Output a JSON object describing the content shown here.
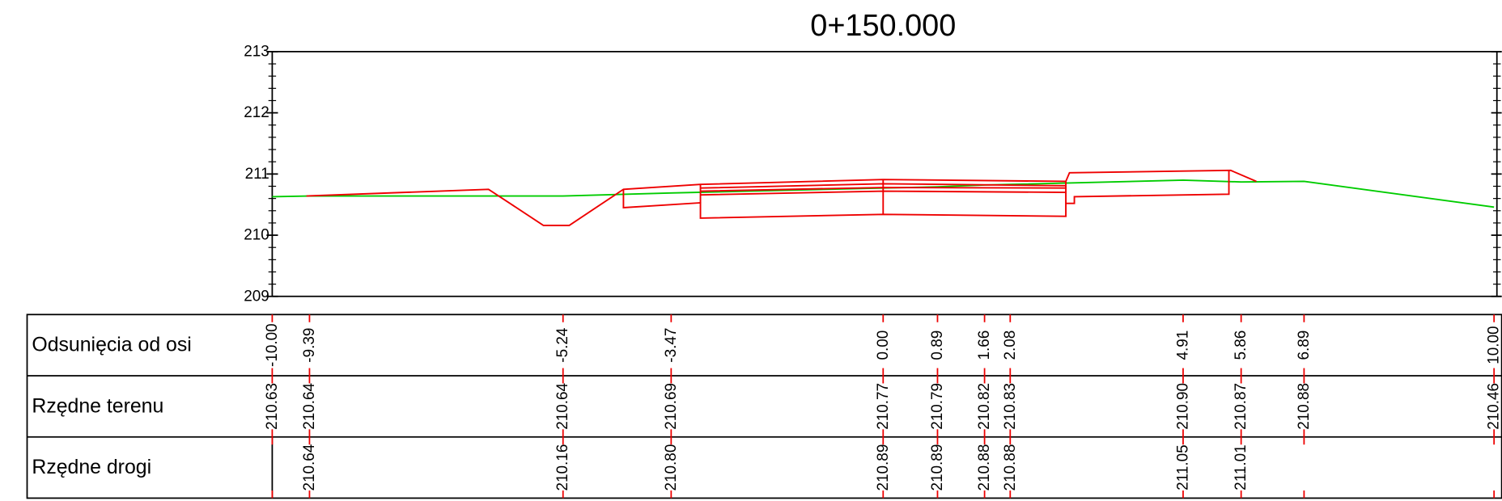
{
  "chart_data": {
    "type": "line",
    "title": "0+150.000",
    "xlim": [
      -10,
      10
    ],
    "ylim": [
      209,
      213
    ],
    "yticks": [
      209,
      210,
      211,
      212,
      213
    ],
    "series": [
      {
        "color": "#00cc00",
        "x": [
          -10,
          -9.39,
          -5.24,
          -3.47,
          0,
          0.89,
          1.66,
          2.08,
          4.91,
          5.86,
          6.89,
          10
        ],
        "values": [
          210.63,
          210.64,
          210.64,
          210.69,
          210.77,
          210.79,
          210.82,
          210.83,
          210.9,
          210.87,
          210.88,
          210.46
        ]
      },
      {
        "color": "#ee0000",
        "x": [
          -9.44,
          -6.46,
          -5.56,
          -5.14,
          -4.25,
          -2.99,
          0,
          2.99,
          3.05,
          5.69,
          6.11
        ],
        "values": [
          210.64,
          210.75,
          210.16,
          210.16,
          210.75,
          210.83,
          210.91,
          210.88,
          211.02,
          211.06,
          210.88
        ]
      },
      {
        "color": "#ee0000",
        "x": [
          -4.25,
          -4.25,
          -2.99,
          -2.99,
          0,
          2.99,
          2.99,
          3.13,
          3.13,
          5.66,
          5.66
        ],
        "values": [
          210.75,
          210.45,
          210.53,
          210.28,
          210.34,
          210.31,
          210.52,
          210.52,
          210.63,
          210.67,
          211.06
        ]
      },
      {
        "color": "#ee0000",
        "x": [
          -2.99,
          0,
          2.99
        ],
        "values": [
          210.77,
          210.84,
          210.81
        ]
      },
      {
        "color": "#ee0000",
        "x": [
          -2.99,
          0,
          2.99
        ],
        "values": [
          210.72,
          210.78,
          210.77
        ]
      },
      {
        "color": "#ee0000",
        "x": [
          -2.99,
          0,
          2.99
        ],
        "values": [
          210.66,
          210.72,
          210.7
        ]
      },
      {
        "color": "#ee0000",
        "x": [
          -2.99,
          -2.99
        ],
        "values": [
          210.83,
          210.53
        ]
      },
      {
        "color": "#ee0000",
        "x": [
          0,
          0
        ],
        "values": [
          210.91,
          210.34
        ]
      },
      {
        "color": "#ee0000",
        "x": [
          2.99,
          2.99
        ],
        "values": [
          210.88,
          210.52
        ]
      }
    ]
  },
  "table": {
    "offsets": [
      {
        "value": -10,
        "label": "-10.00"
      },
      {
        "value": -9.39,
        "label": "-9.39"
      },
      {
        "value": -5.24,
        "label": "-5.24"
      },
      {
        "value": -3.47,
        "label": "-3.47"
      },
      {
        "value": 0,
        "label": "0.00"
      },
      {
        "value": 0.89,
        "label": "0.89"
      },
      {
        "value": 1.66,
        "label": "1.66"
      },
      {
        "value": 2.08,
        "label": "2.08"
      },
      {
        "value": 4.91,
        "label": "4.91"
      },
      {
        "value": 5.86,
        "label": "5.86"
      },
      {
        "value": 6.89,
        "label": "6.89"
      },
      {
        "value": 10,
        "label": "10.00"
      }
    ],
    "rows": [
      {
        "label": "Odsunięcia od osi"
      },
      {
        "label": "Rzędne terenu",
        "values": [
          "210.63",
          "210.64",
          "210.64",
          "210.69",
          "210.77",
          "210.79",
          "210.82",
          "210.83",
          "210.90",
          "210.87",
          "210.88",
          "210.46"
        ]
      },
      {
        "label": "Rzędne drogi",
        "values": [
          null,
          "210.64",
          "210.16",
          "210.80",
          "210.89",
          "210.89",
          "210.88",
          "210.88",
          "211.05",
          "211.01",
          null,
          null
        ]
      }
    ]
  }
}
